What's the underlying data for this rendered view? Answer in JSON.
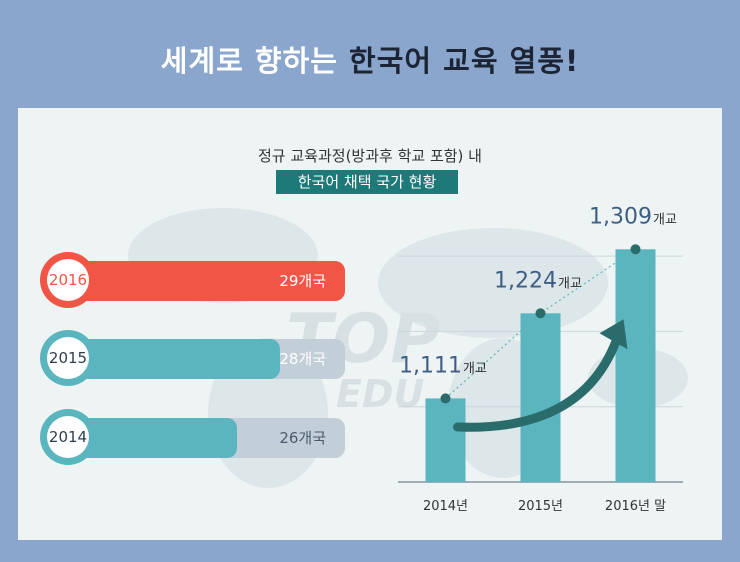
{
  "header": {
    "title_part1": "세계로 향하는 ",
    "title_highlight": "한국어 교육 열풍!"
  },
  "infographic": {
    "subtitle_line1": "정규 교육과정(방과후 학교 포함) 내",
    "subtitle_line2": "한국어 채택 국가 현황",
    "colors": {
      "highlight": "#f05545",
      "primary": "#5ab5bf",
      "muted": "#c2cfd8",
      "accent_dark": "#1e7a78",
      "arrow": "#2a6c6c",
      "value_text": "#3e5e86"
    },
    "year_bars": [
      {
        "year": "2016",
        "value_label": "29개국",
        "fill_fraction": 1.0,
        "color": "#f05545"
      },
      {
        "year": "2015",
        "value_label": "28개국",
        "fill_fraction": 0.76,
        "color": "#5ab5bf"
      },
      {
        "year": "2014",
        "value_label": "26개국",
        "fill_fraction": 0.6,
        "color": "#5ab5bf"
      }
    ],
    "watermark": {
      "brand_text": "TOP",
      "sub_text": "EDU"
    }
  },
  "chart_data": {
    "type": "bar",
    "categories": [
      "2014년",
      "2015년",
      "2016년 말"
    ],
    "values": [
      1111,
      1224,
      1309
    ],
    "value_labels": [
      "1,111",
      "1,224",
      "1,309"
    ],
    "unit": "개교",
    "ylim": [
      1000,
      1320
    ],
    "grid": true,
    "bar_color": "#5ab5bf",
    "trend_line": "dotted",
    "growth_arrow": true
  }
}
